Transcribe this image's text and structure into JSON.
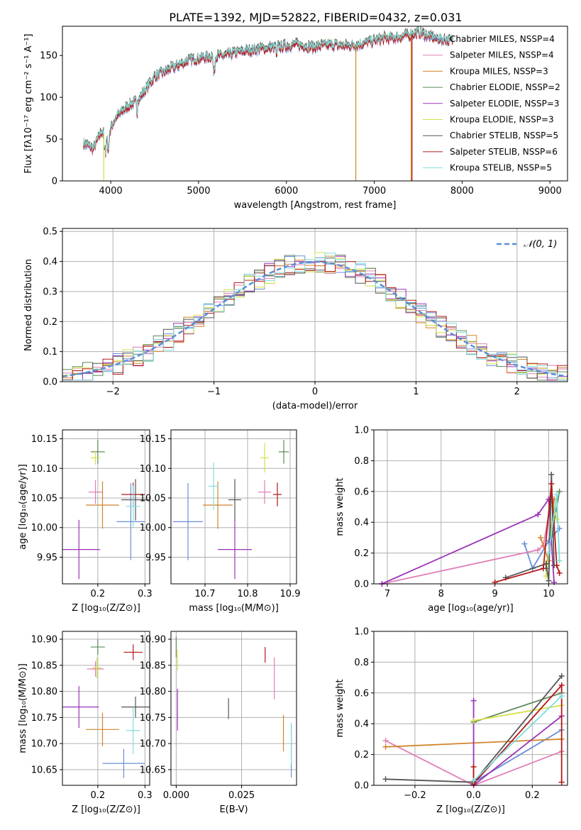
{
  "figure_title": "PLATE=1392, MJD=52822, FIBERID=0432, z=0.031",
  "series_colors": {
    "Chabrier MILES": "#6a8fd8",
    "Salpeter MILES": "#e07fb6",
    "Kroupa MILES": "#d2842a",
    "Chabrier ELODIE": "#5e8a5a",
    "Salpeter ELODIE": "#9b33b8",
    "Kroupa ELODIE": "#d6e04a",
    "Chabrier STELIB": "#555555",
    "Salpeter STELIB": "#b51919",
    "Kroupa STELIB": "#7fdede"
  },
  "chart_data": [
    {
      "id": "spectrum",
      "type": "line",
      "xlabel": "wavelength [Angstrom, rest frame]",
      "ylabel": "Flux [fλ10⁻¹⁷ erg cm⁻² s⁻¹ A⁻¹]",
      "xlim": [
        3450,
        9200
      ],
      "ylim": [
        0,
        185
      ],
      "xticks": [
        4000,
        5000,
        6000,
        7000,
        8000,
        9000
      ],
      "yticks": [
        0,
        50,
        100,
        150
      ],
      "grid": false,
      "legend_position": "upper right",
      "legend": [
        "Chabrier MILES, NSSP=4",
        "Salpeter MILES, NSSP=4",
        "Kroupa MILES, NSSP=3",
        "Chabrier ELODIE, NSSP=2",
        "Salpeter ELODIE, NSSP=3",
        "Kroupa ELODIE, NSSP=3",
        "Chabrier STELIB, NSSP=5",
        "Salpeter STELIB, NSSP=6",
        "Kroupa STELIB, NSSP=5"
      ],
      "continuum": {
        "x": [
          3700,
          3800,
          3900,
          3950,
          4050,
          4200,
          4300,
          4400,
          4500,
          4700,
          4900,
          5100,
          5300,
          5500,
          5700,
          5900,
          6100,
          6300,
          6500,
          6700,
          6900,
          7100,
          7300,
          7500,
          7700,
          7900
        ],
        "y": [
          45,
          38,
          60,
          48,
          75,
          90,
          95,
          110,
          125,
          135,
          145,
          148,
          150,
          155,
          158,
          160,
          163,
          160,
          163,
          161,
          165,
          170,
          172,
          178,
          170,
          168
        ]
      },
      "drops": [
        {
          "series": "Kroupa ELODIE",
          "x": 3920,
          "y_to": 0
        },
        {
          "series": "Kroupa MILES",
          "x": 6790,
          "y_to": 0
        },
        {
          "series": "Kroupa MILES",
          "x": 7420,
          "y_to": 0
        },
        {
          "series": "Salpeter STELIB",
          "x": 7430,
          "y_to": 0
        }
      ]
    },
    {
      "id": "residuals",
      "type": "histogram",
      "xlabel": "(data-model)/error",
      "ylabel": "Normed distribution",
      "xlim": [
        -2.5,
        2.5
      ],
      "ylim": [
        0,
        0.51
      ],
      "xticks": [
        -2,
        -1,
        0,
        1,
        2
      ],
      "yticks": [
        0.0,
        0.1,
        0.2,
        0.3,
        0.4,
        0.5
      ],
      "grid": true,
      "bin_width": 0.1,
      "bin_start": -2.5,
      "reference_curve": {
        "label": "𝒩(0, 1)",
        "mean": 0,
        "sigma": 1,
        "color": "#5b8fd9",
        "style": "dashed"
      },
      "legend_position": "upper right"
    },
    {
      "id": "age_vs_Z",
      "type": "errorbar",
      "xlabel": "Z [log₁₀(Z/Z⊙)]",
      "ylabel": "age  [log₁₀(age/yr)]",
      "xlim": [
        0.125,
        0.31
      ],
      "ylim": [
        9.905,
        10.165
      ],
      "xticks": [
        0.2,
        0.3
      ],
      "yticks": [
        9.95,
        10.0,
        10.05,
        10.1,
        10.15
      ],
      "grid": true,
      "points": [
        {
          "series": "Chabrier MILES",
          "x": 0.27,
          "xerr": 0.03,
          "y": 10.01,
          "yerr": 0.065
        },
        {
          "series": "Salpeter MILES",
          "x": 0.195,
          "xerr": 0.015,
          "y": 10.06,
          "yerr": 0.02
        },
        {
          "series": "Kroupa MILES",
          "x": 0.21,
          "xerr": 0.035,
          "y": 10.038,
          "yerr": 0.04
        },
        {
          "series": "Chabrier ELODIE",
          "x": 0.2,
          "xerr": 0.015,
          "y": 10.128,
          "yerr": 0.02
        },
        {
          "series": "Salpeter ELODIE",
          "x": 0.16,
          "xerr": 0.045,
          "y": 9.963,
          "yerr": 0.05
        },
        {
          "series": "Kroupa ELODIE",
          "x": 0.195,
          "xerr": 0.01,
          "y": 10.118,
          "yerr": 0.012
        },
        {
          "series": "Chabrier STELIB",
          "x": 0.28,
          "xerr": 0.03,
          "y": 10.047,
          "yerr": 0.035
        },
        {
          "series": "Salpeter STELIB",
          "x": 0.275,
          "xerr": 0.025,
          "y": 10.056,
          "yerr": 0.02
        },
        {
          "series": "Kroupa STELIB",
          "x": 0.275,
          "xerr": 0.015,
          "y": 10.036,
          "yerr": 0.035
        }
      ]
    },
    {
      "id": "age_vs_mass",
      "type": "errorbar",
      "xlabel": "mass [log₁₀(M/M⊙)]",
      "ylabel": "",
      "xlim": [
        10.62,
        10.915
      ],
      "ylim": [
        9.905,
        10.165
      ],
      "xticks": [
        10.7,
        10.8,
        10.9
      ],
      "yticks": [
        9.95,
        10.0,
        10.05,
        10.1,
        10.15
      ],
      "grid": true,
      "points": [
        {
          "series": "Chabrier MILES",
          "x": 10.66,
          "xerr": 0.035,
          "y": 10.01,
          "yerr": 0.065
        },
        {
          "series": "Salpeter MILES",
          "x": 10.84,
          "xerr": 0.015,
          "y": 10.06,
          "yerr": 0.02
        },
        {
          "series": "Kroupa MILES",
          "x": 10.73,
          "xerr": 0.035,
          "y": 10.038,
          "yerr": 0.04
        },
        {
          "series": "Chabrier ELODIE",
          "x": 10.885,
          "xerr": 0.012,
          "y": 10.128,
          "yerr": 0.02
        },
        {
          "series": "Salpeter ELODIE",
          "x": 10.77,
          "xerr": 0.04,
          "y": 9.963,
          "yerr": 0.05
        },
        {
          "series": "Kroupa ELODIE",
          "x": 10.84,
          "xerr": 0.01,
          "y": 10.118,
          "yerr": 0.025
        },
        {
          "series": "Chabrier STELIB",
          "x": 10.77,
          "xerr": 0.015,
          "y": 10.047,
          "yerr": 0.035
        },
        {
          "series": "Salpeter STELIB",
          "x": 10.87,
          "xerr": 0.01,
          "y": 10.056,
          "yerr": 0.02
        },
        {
          "series": "Kroupa STELIB",
          "x": 10.72,
          "xerr": 0.012,
          "y": 10.07,
          "yerr": 0.04
        }
      ]
    },
    {
      "id": "massweight_vs_age",
      "type": "line",
      "xlabel": "age  [log₁₀(age/yr)]",
      "ylabel": "mass weight",
      "xlim": [
        6.75,
        10.35
      ],
      "ylim": [
        0,
        1.0
      ],
      "xticks": [
        7,
        8,
        9,
        10
      ],
      "yticks": [
        0.0,
        0.2,
        0.4,
        0.6,
        0.8,
        1.0
      ],
      "grid": true,
      "series": [
        {
          "name": "Chabrier MILES",
          "x": [
            9.55,
            9.7,
            10.0,
            10.2
          ],
          "y": [
            0.26,
            0.1,
            0.28,
            0.36
          ]
        },
        {
          "name": "Salpeter MILES",
          "x": [
            6.9,
            9.8,
            9.9,
            10.05
          ],
          "y": [
            0.0,
            0.22,
            0.25,
            0.55
          ]
        },
        {
          "name": "Kroupa MILES",
          "x": [
            9.85,
            10.0,
            10.1
          ],
          "y": [
            0.3,
            0.15,
            0.55
          ]
        },
        {
          "name": "Chabrier ELODIE",
          "x": [
            9.95,
            10.2
          ],
          "y": [
            0.1,
            0.6
          ]
        },
        {
          "name": "Salpeter ELODIE",
          "x": [
            6.9,
            9.8,
            10.0,
            10.1
          ],
          "y": [
            0.0,
            0.45,
            0.55,
            0.01
          ]
        },
        {
          "name": "Kroupa ELODIE",
          "x": [
            9.95,
            10.1,
            10.15
          ],
          "y": [
            0.05,
            0.5,
            0.42
          ]
        },
        {
          "name": "Chabrier STELIB",
          "x": [
            9.2,
            9.95,
            10.0,
            10.05,
            10.1
          ],
          "y": [
            0.04,
            0.13,
            0.02,
            0.71,
            0.12
          ]
        },
        {
          "name": "Salpeter STELIB",
          "x": [
            9.0,
            9.9,
            10.05,
            10.15,
            10.2
          ],
          "y": [
            0.01,
            0.1,
            0.65,
            0.12,
            0.07
          ]
        },
        {
          "name": "Kroupa STELIB",
          "x": [
            10.0,
            10.15,
            10.2
          ],
          "y": [
            0.2,
            0.58,
            0.15
          ]
        }
      ]
    },
    {
      "id": "mass_vs_Z",
      "type": "errorbar",
      "xlabel": "Z [log₁₀(Z/Z⊙)]",
      "ylabel": "mass [log₁₀(M/M⊙)]",
      "xlim": [
        0.125,
        0.31
      ],
      "ylim": [
        10.62,
        10.915
      ],
      "xticks": [
        0.1,
        0.2,
        0.3
      ],
      "yticks": [
        10.65,
        10.7,
        10.75,
        10.8,
        10.85,
        10.9
      ],
      "grid": true,
      "points": [
        {
          "series": "Chabrier MILES",
          "x": 0.255,
          "xerr": 0.045,
          "y": 10.662,
          "yerr": 0.028
        },
        {
          "series": "Salpeter MILES",
          "x": 0.195,
          "xerr": 0.018,
          "y": 10.843,
          "yerr": 0.015
        },
        {
          "series": "Kroupa MILES",
          "x": 0.21,
          "xerr": 0.035,
          "y": 10.727,
          "yerr": 0.032
        },
        {
          "series": "Chabrier ELODIE",
          "x": 0.2,
          "xerr": 0.015,
          "y": 10.885,
          "yerr": 0.015
        },
        {
          "series": "Salpeter ELODIE",
          "x": 0.16,
          "xerr": 0.042,
          "y": 10.77,
          "yerr": 0.04
        },
        {
          "series": "Kroupa ELODIE",
          "x": 0.198,
          "xerr": 0.01,
          "y": 10.845,
          "yerr": 0.02
        },
        {
          "series": "Chabrier STELIB",
          "x": 0.28,
          "xerr": 0.03,
          "y": 10.77,
          "yerr": 0.02
        },
        {
          "series": "Salpeter STELIB",
          "x": 0.275,
          "xerr": 0.02,
          "y": 10.875,
          "yerr": 0.015
        },
        {
          "series": "Kroupa STELIB",
          "x": 0.275,
          "xerr": 0.015,
          "y": 10.725,
          "yerr": 0.045
        }
      ]
    },
    {
      "id": "mass_vs_ebv",
      "type": "errorbar",
      "xlabel": "E(B-V)",
      "ylabel": "",
      "xlim": [
        -0.002,
        0.046
      ],
      "ylim": [
        10.62,
        10.915
      ],
      "xticks": [
        0.0,
        0.025
      ],
      "yticks": [
        10.65,
        10.7,
        10.75,
        10.8,
        10.85,
        10.9
      ],
      "grid": true,
      "points": [
        {
          "series": "Chabrier MILES",
          "x": 0.044,
          "xerr": 0,
          "y": 10.685,
          "yerr": 0.05
        },
        {
          "series": "Salpeter MILES",
          "x": 0.0375,
          "xerr": 0,
          "y": 10.825,
          "yerr": 0.04
        },
        {
          "series": "Kroupa MILES",
          "x": 0.041,
          "xerr": 0,
          "y": 10.72,
          "yerr": 0.035
        },
        {
          "series": "Chabrier ELODIE",
          "x": 0.0,
          "xerr": 0,
          "y": 10.885,
          "yerr": 0.02
        },
        {
          "series": "Salpeter ELODIE",
          "x": 0.0005,
          "xerr": 0,
          "y": 10.765,
          "yerr": 0.04
        },
        {
          "series": "Kroupa ELODIE",
          "x": 0.0005,
          "xerr": 0,
          "y": 10.86,
          "yerr": 0.02
        },
        {
          "series": "Chabrier STELIB",
          "x": 0.02,
          "xerr": 0,
          "y": 10.767,
          "yerr": 0.02
        },
        {
          "series": "Salpeter STELIB",
          "x": 0.034,
          "xerr": 0,
          "y": 10.87,
          "yerr": 0.015
        },
        {
          "series": "Kroupa STELIB",
          "x": 0.044,
          "xerr": 0,
          "y": 10.7,
          "yerr": 0.04
        }
      ]
    },
    {
      "id": "massweight_vs_Z",
      "type": "line",
      "xlabel": "Z [log₁₀(Z/Z⊙)]",
      "ylabel": "mass weight",
      "xlim": [
        -0.34,
        0.32
      ],
      "ylim": [
        0,
        1.0
      ],
      "xticks": [
        -0.2,
        0.0,
        0.2
      ],
      "yticks": [
        0.0,
        0.2,
        0.4,
        0.6,
        0.8,
        1.0
      ],
      "grid": true,
      "series": [
        {
          "name": "Chabrier MILES",
          "x": [
            0.0,
            0.3
          ],
          "y": [
            0.02,
            0.36
          ]
        },
        {
          "name": "Salpeter MILES",
          "x": [
            -0.3,
            0.0,
            0.3
          ],
          "y": [
            0.29,
            0.0,
            0.22
          ]
        },
        {
          "name": "Kroupa MILES",
          "x": [
            -0.3,
            0.3
          ],
          "y": [
            0.25,
            0.3
          ]
        },
        {
          "name": "Chabrier ELODIE",
          "x": [
            0.0,
            0.3
          ],
          "y": [
            0.41,
            0.6
          ]
        },
        {
          "name": "Salpeter ELODIE",
          "x": [
            0.0,
            0.0,
            0.3
          ],
          "y": [
            0.55,
            0.0,
            0.45
          ]
        },
        {
          "name": "Kroupa ELODIE",
          "x": [
            0.0,
            0.3
          ],
          "y": [
            0.42,
            0.52
          ]
        },
        {
          "name": "Chabrier STELIB",
          "x": [
            -0.3,
            0.0,
            0.3
          ],
          "y": [
            0.04,
            0.02,
            0.71
          ]
        },
        {
          "name": "Salpeter STELIB",
          "x": [
            0.0,
            0.0,
            0.3,
            0.3
          ],
          "y": [
            0.12,
            0.01,
            0.65,
            0.02
          ]
        },
        {
          "name": "Kroupa STELIB",
          "x": [
            0.0,
            0.3
          ],
          "y": [
            0.03,
            0.58
          ]
        }
      ]
    }
  ]
}
